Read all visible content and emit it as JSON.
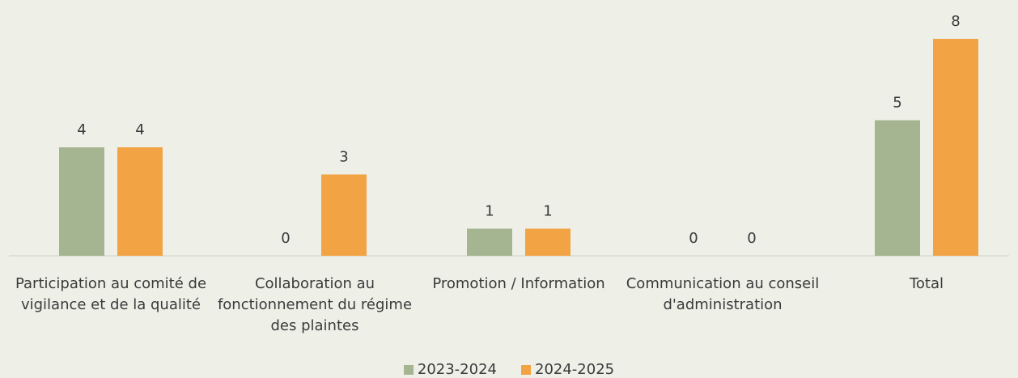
{
  "chart_data": {
    "type": "bar",
    "categories": [
      "Participation au comité de vigilance et de la qualité",
      "Collaboration au fonctionnement du régime des plaintes",
      "Promotion / Information",
      "Communication au conseil d'administration",
      "Total"
    ],
    "series": [
      {
        "name": "2023-2024",
        "color": "#a5b592",
        "values": [
          4,
          0,
          1,
          0,
          5
        ]
      },
      {
        "name": "2024-2025",
        "color": "#f2a444",
        "values": [
          4,
          3,
          1,
          0,
          8
        ]
      }
    ],
    "legend": "bottom"
  }
}
